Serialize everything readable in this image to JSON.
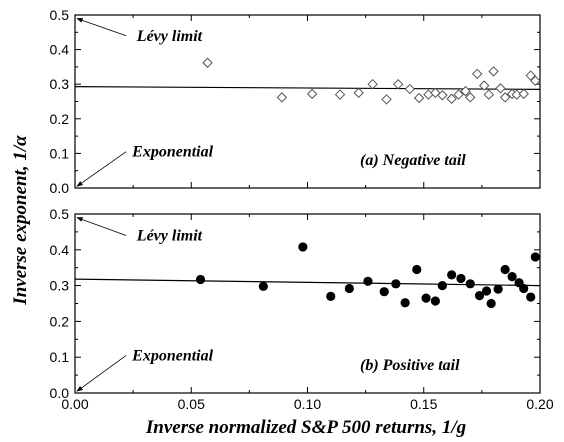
{
  "chart_data": [
    {
      "type": "scatter",
      "panel_label": "(a) Negative tail",
      "marker": "open-diamond",
      "xlim": [
        0.0,
        0.2
      ],
      "ylim": [
        0.0,
        0.5
      ],
      "x_ticks": [
        "0.00",
        "0.05",
        "0.10",
        "0.15",
        "0.20"
      ],
      "y_ticks": [
        "0.0",
        "0.1",
        "0.2",
        "0.3",
        "0.4",
        "0.5"
      ],
      "points": [
        {
          "x": 0.057,
          "y": 0.362
        },
        {
          "x": 0.089,
          "y": 0.262
        },
        {
          "x": 0.102,
          "y": 0.272
        },
        {
          "x": 0.114,
          "y": 0.27
        },
        {
          "x": 0.122,
          "y": 0.275
        },
        {
          "x": 0.128,
          "y": 0.3
        },
        {
          "x": 0.134,
          "y": 0.256
        },
        {
          "x": 0.139,
          "y": 0.3
        },
        {
          "x": 0.144,
          "y": 0.286
        },
        {
          "x": 0.148,
          "y": 0.26
        },
        {
          "x": 0.152,
          "y": 0.27
        },
        {
          "x": 0.155,
          "y": 0.275
        },
        {
          "x": 0.158,
          "y": 0.268
        },
        {
          "x": 0.162,
          "y": 0.258
        },
        {
          "x": 0.165,
          "y": 0.27
        },
        {
          "x": 0.168,
          "y": 0.28
        },
        {
          "x": 0.17,
          "y": 0.262
        },
        {
          "x": 0.173,
          "y": 0.33
        },
        {
          "x": 0.176,
          "y": 0.296
        },
        {
          "x": 0.178,
          "y": 0.27
        },
        {
          "x": 0.18,
          "y": 0.337
        },
        {
          "x": 0.183,
          "y": 0.288
        },
        {
          "x": 0.185,
          "y": 0.262
        },
        {
          "x": 0.188,
          "y": 0.272
        },
        {
          "x": 0.19,
          "y": 0.27
        },
        {
          "x": 0.193,
          "y": 0.272
        },
        {
          "x": 0.196,
          "y": 0.325
        },
        {
          "x": 0.198,
          "y": 0.31
        }
      ],
      "fit_line": {
        "x": [
          0.0,
          0.2
        ],
        "y": [
          0.293,
          0.285
        ]
      },
      "annotations": {
        "levy": {
          "text": "Lévy limit",
          "text_at": [
            0.024,
            0.44
          ],
          "arrow_from": [
            0.022,
            0.44
          ],
          "arrow_to": [
            0.0,
            0.49
          ]
        },
        "exponential": {
          "text": "Exponential",
          "text_at": [
            0.022,
            0.105
          ],
          "arrow_from": [
            0.022,
            0.105
          ],
          "arrow_to": [
            0.0,
            0.005
          ]
        }
      }
    },
    {
      "type": "scatter",
      "panel_label": "(b) Positive tail",
      "marker": "filled-circle",
      "xlim": [
        0.0,
        0.2
      ],
      "ylim": [
        0.0,
        0.5
      ],
      "x_ticks": [
        "0.00",
        "0.05",
        "0.10",
        "0.15",
        "0.20"
      ],
      "y_ticks": [
        "0.0",
        "0.1",
        "0.2",
        "0.3",
        "0.4",
        "0.5"
      ],
      "points": [
        {
          "x": 0.054,
          "y": 0.317
        },
        {
          "x": 0.081,
          "y": 0.298
        },
        {
          "x": 0.098,
          "y": 0.408
        },
        {
          "x": 0.11,
          "y": 0.27
        },
        {
          "x": 0.118,
          "y": 0.292
        },
        {
          "x": 0.126,
          "y": 0.312
        },
        {
          "x": 0.133,
          "y": 0.283
        },
        {
          "x": 0.138,
          "y": 0.305
        },
        {
          "x": 0.142,
          "y": 0.252
        },
        {
          "x": 0.147,
          "y": 0.345
        },
        {
          "x": 0.151,
          "y": 0.265
        },
        {
          "x": 0.155,
          "y": 0.257
        },
        {
          "x": 0.158,
          "y": 0.3
        },
        {
          "x": 0.162,
          "y": 0.33
        },
        {
          "x": 0.166,
          "y": 0.32
        },
        {
          "x": 0.17,
          "y": 0.305
        },
        {
          "x": 0.174,
          "y": 0.272
        },
        {
          "x": 0.177,
          "y": 0.285
        },
        {
          "x": 0.179,
          "y": 0.25
        },
        {
          "x": 0.182,
          "y": 0.29
        },
        {
          "x": 0.185,
          "y": 0.345
        },
        {
          "x": 0.188,
          "y": 0.325
        },
        {
          "x": 0.191,
          "y": 0.308
        },
        {
          "x": 0.193,
          "y": 0.292
        },
        {
          "x": 0.196,
          "y": 0.268
        },
        {
          "x": 0.198,
          "y": 0.38
        }
      ],
      "fit_line": {
        "x": [
          0.0,
          0.2
        ],
        "y": [
          0.318,
          0.3
        ]
      },
      "annotations": {
        "levy": {
          "text": "Lévy limit",
          "text_at": [
            0.024,
            0.44
          ],
          "arrow_from": [
            0.022,
            0.44
          ],
          "arrow_to": [
            0.0,
            0.49
          ]
        },
        "exponential": {
          "text": "Exponential",
          "text_at": [
            0.022,
            0.105
          ],
          "arrow_from": [
            0.022,
            0.105
          ],
          "arrow_to": [
            0.0,
            0.005
          ]
        }
      }
    }
  ],
  "ylabel": "Inverse exponent, 1/α",
  "xlabel": "Inverse normalized S&P 500 returns, 1/g",
  "colors": {
    "ink": "#000000",
    "background": "#ffffff"
  }
}
